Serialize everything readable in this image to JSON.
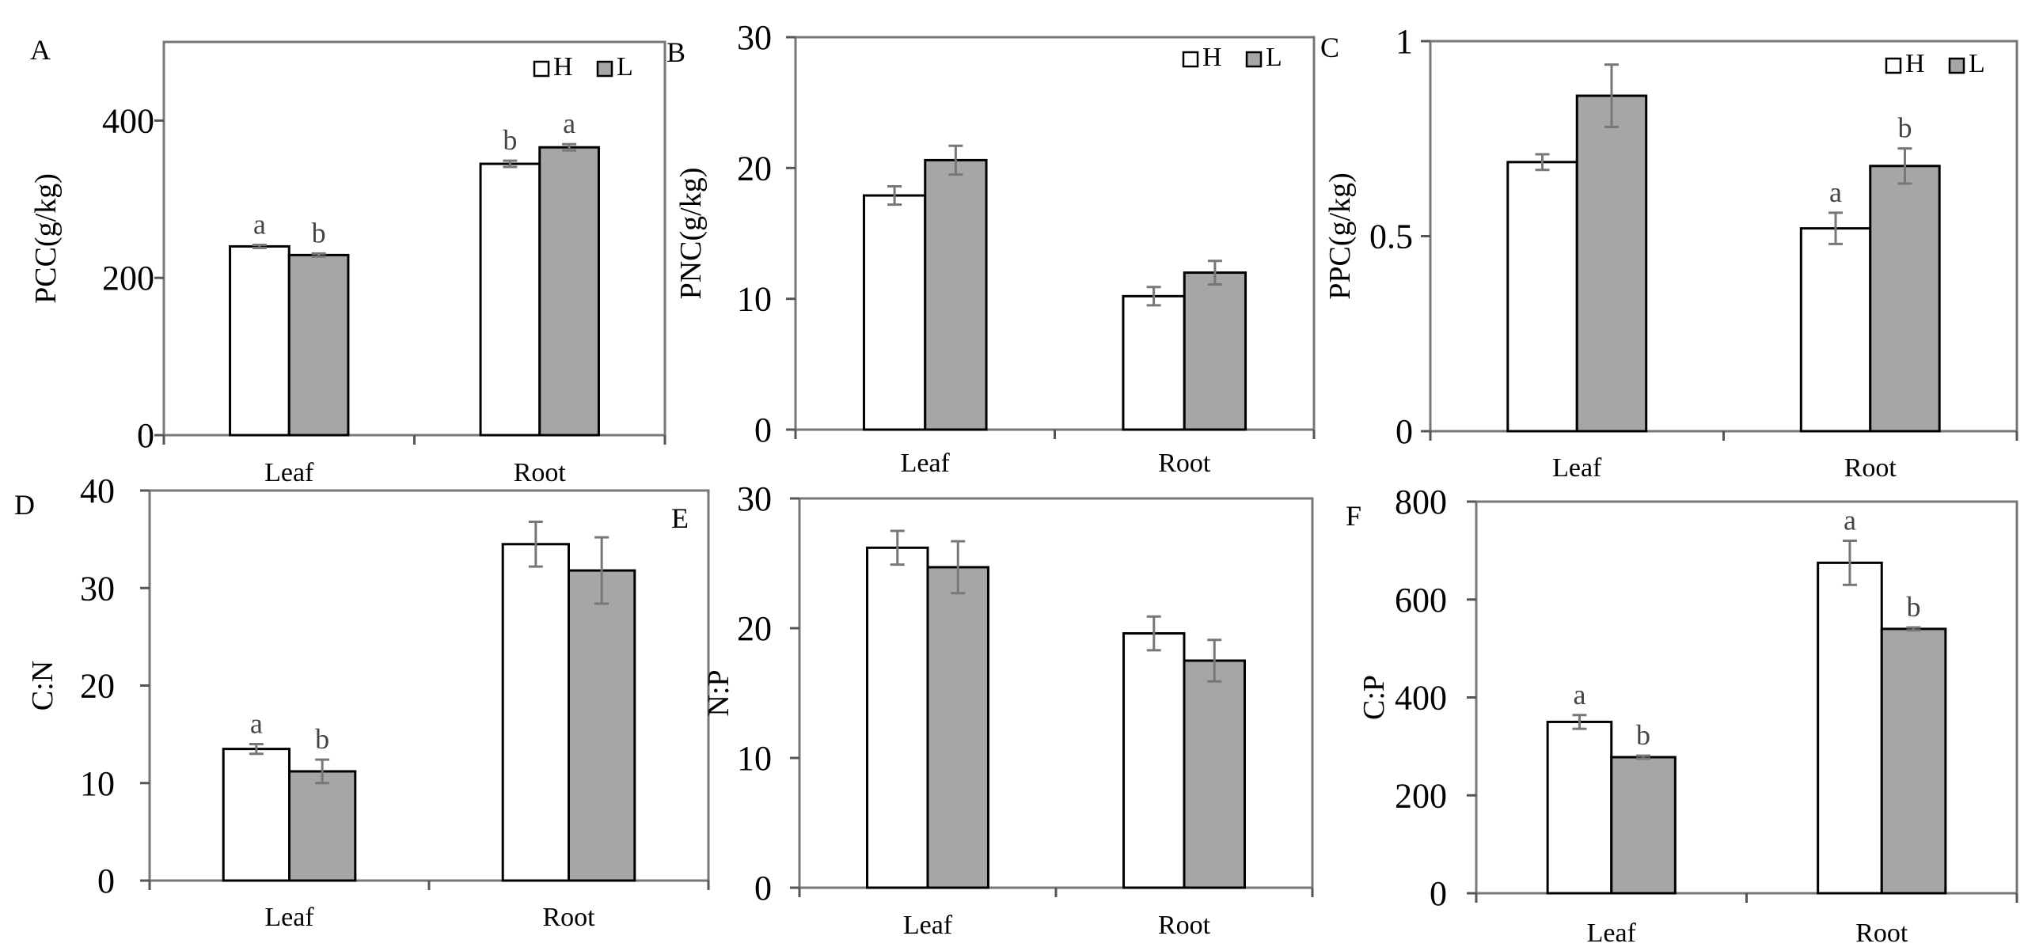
{
  "figure": {
    "series_names": [
      "H",
      "L"
    ],
    "colors": {
      "H": "#ffffff",
      "L": "#a6a6a6",
      "edge": "#000000",
      "error": "#777777",
      "sig": "#444444"
    }
  },
  "chart_data": [
    {
      "panel": "A",
      "type": "bar",
      "ylabel": "PCC(g/kg)",
      "ylim": [
        0,
        500
      ],
      "yticks": [
        0,
        200,
        400
      ],
      "categories": [
        "Leaf",
        "Root"
      ],
      "series": [
        {
          "name": "H",
          "values": [
            240,
            345
          ],
          "errors": [
            2,
            4
          ],
          "sig": [
            "a",
            "b"
          ]
        },
        {
          "name": "L",
          "values": [
            229,
            366
          ],
          "errors": [
            2,
            4
          ],
          "sig": [
            "b",
            "a"
          ]
        }
      ],
      "legend": "top-right"
    },
    {
      "panel": "B",
      "type": "bar",
      "ylabel": "PNC(g/kg)",
      "ylim": [
        0,
        30
      ],
      "yticks": [
        0,
        10,
        20,
        30
      ],
      "categories": [
        "Leaf",
        "Root"
      ],
      "series": [
        {
          "name": "H",
          "values": [
            17.9,
            10.2
          ],
          "errors": [
            0.7,
            0.7
          ],
          "sig": [
            "",
            ""
          ]
        },
        {
          "name": "L",
          "values": [
            20.6,
            12.0
          ],
          "errors": [
            1.1,
            0.9
          ],
          "sig": [
            "",
            ""
          ]
        }
      ],
      "legend": "top-right"
    },
    {
      "panel": "C",
      "type": "bar",
      "ylabel": "PPC(g/kg)",
      "ylim": [
        0,
        1
      ],
      "yticks": [
        0,
        0.5,
        1
      ],
      "categories": [
        "Leaf",
        "Root"
      ],
      "series": [
        {
          "name": "H",
          "values": [
            0.69,
            0.52
          ],
          "errors": [
            0.02,
            0.04
          ],
          "sig": [
            "",
            "a"
          ]
        },
        {
          "name": "L",
          "values": [
            0.86,
            0.68
          ],
          "errors": [
            0.08,
            0.045
          ],
          "sig": [
            "",
            "b"
          ]
        }
      ],
      "legend": "top-right"
    },
    {
      "panel": "D",
      "type": "bar",
      "ylabel": "C:N",
      "ylim": [
        0,
        40
      ],
      "yticks": [
        0,
        10,
        20,
        30,
        40
      ],
      "categories": [
        "Leaf",
        "Root"
      ],
      "series": [
        {
          "name": "H",
          "values": [
            13.5,
            34.5
          ],
          "errors": [
            0.5,
            2.3
          ],
          "sig": [
            "a",
            ""
          ]
        },
        {
          "name": "L",
          "values": [
            11.2,
            31.8
          ],
          "errors": [
            1.2,
            3.4
          ],
          "sig": [
            "b",
            ""
          ]
        }
      ],
      "legend": "none"
    },
    {
      "panel": "E",
      "type": "bar",
      "ylabel": "N:P",
      "ylim": [
        0,
        30
      ],
      "yticks": [
        0,
        10,
        20,
        30
      ],
      "categories": [
        "Leaf",
        "Root"
      ],
      "series": [
        {
          "name": "H",
          "values": [
            26.2,
            19.6
          ],
          "errors": [
            1.3,
            1.3
          ],
          "sig": [
            "",
            ""
          ]
        },
        {
          "name": "L",
          "values": [
            24.7,
            17.5
          ],
          "errors": [
            2.0,
            1.6
          ],
          "sig": [
            "",
            ""
          ]
        }
      ],
      "legend": "none"
    },
    {
      "panel": "F",
      "type": "bar",
      "ylabel": "C:P",
      "ylim": [
        0,
        800
      ],
      "yticks": [
        0,
        200,
        400,
        600,
        800
      ],
      "categories": [
        "Leaf",
        "Root"
      ],
      "series": [
        {
          "name": "H",
          "values": [
            350,
            675
          ],
          "errors": [
            14,
            45
          ],
          "sig": [
            "a",
            "a"
          ]
        },
        {
          "name": "L",
          "values": [
            278,
            540
          ],
          "errors": [
            3,
            3
          ],
          "sig": [
            "b",
            "b"
          ]
        }
      ],
      "legend": "none"
    }
  ]
}
